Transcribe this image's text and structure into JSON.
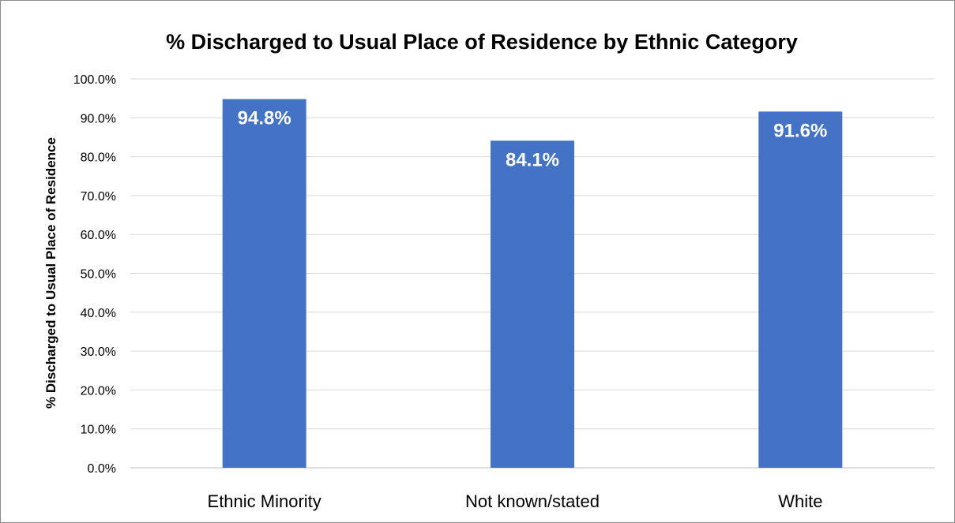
{
  "chart_data": {
    "type": "bar",
    "title": "% Discharged to Usual Place of Residence by Ethnic Category",
    "xlabel": "",
    "ylabel": "% Discharged to Usual Place of Residence",
    "categories": [
      "Ethnic Minority",
      "Not known/stated",
      "White"
    ],
    "values": [
      94.8,
      84.1,
      91.6
    ],
    "data_labels": [
      "94.8%",
      "84.1%",
      "91.6%"
    ],
    "ylim": [
      0,
      100
    ],
    "ytick_step": 10,
    "ytick_labels": [
      "0.0%",
      "10.0%",
      "20.0%",
      "30.0%",
      "40.0%",
      "50.0%",
      "60.0%",
      "70.0%",
      "80.0%",
      "90.0%",
      "100.0%"
    ],
    "grid": true,
    "legend": "none",
    "bar_color": "#4472C4",
    "grid_color": "#D9D9D9"
  }
}
